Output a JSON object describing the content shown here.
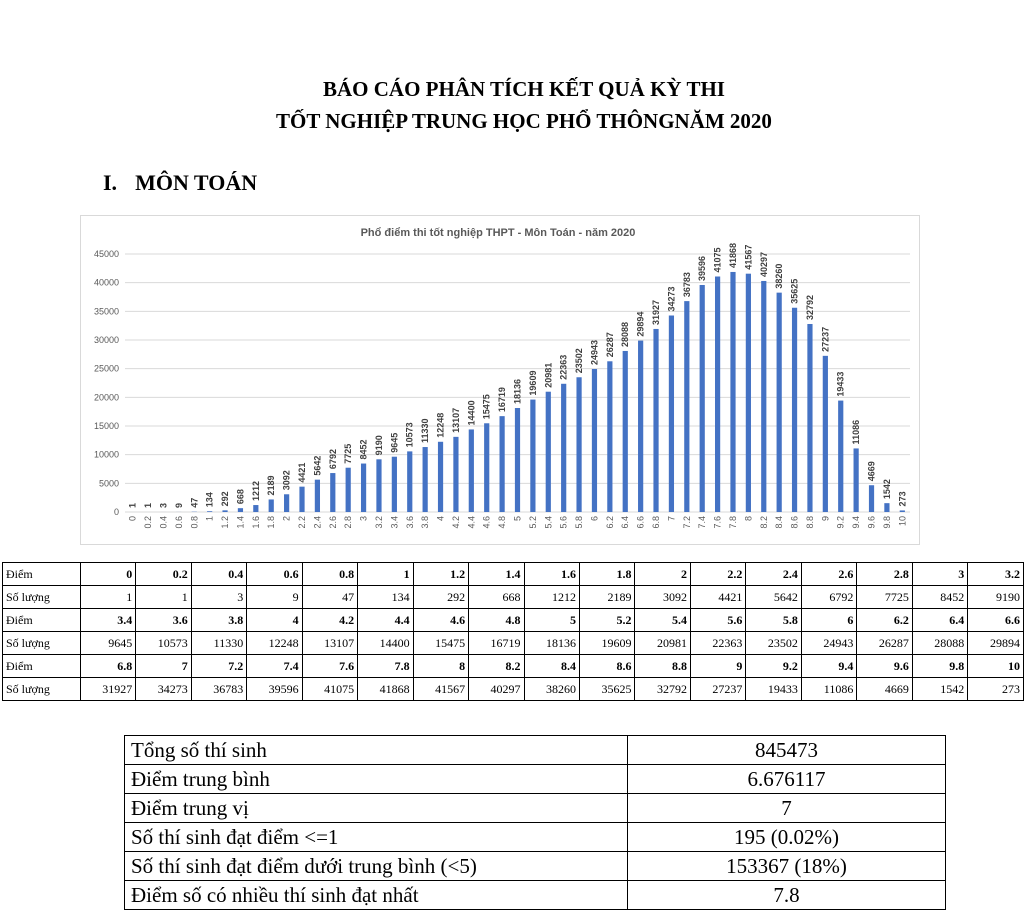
{
  "header": {
    "title_lines": [
      "BÁO CÁO PHÂN TÍCH KẾT QUẢ KỲ THI",
      "TỐT NGHIỆP TRUNG HỌC PHỔ THÔNGNĂM 2020"
    ]
  },
  "section": {
    "number": "I.",
    "title": "MÔN TOÁN"
  },
  "chart_data": {
    "type": "bar",
    "title": "Phổ điểm thi tốt nghiệp THPT - Môn Toán - năm 2020",
    "categories": [
      0,
      0.2,
      0.4,
      0.6,
      0.8,
      1,
      1.2,
      1.4,
      1.6,
      1.8,
      2,
      2.2,
      2.4,
      2.6,
      2.8,
      3,
      3.2,
      3.4,
      3.6,
      3.8,
      4,
      4.2,
      4.4,
      4.6,
      4.8,
      5,
      5.2,
      5.4,
      5.6,
      5.8,
      6,
      6.2,
      6.4,
      6.6,
      6.8,
      7,
      7.2,
      7.4,
      7.6,
      7.8,
      8,
      8.2,
      8.4,
      8.6,
      8.8,
      9,
      9.2,
      9.4,
      9.6,
      9.8,
      10
    ],
    "values": [
      1,
      1,
      3,
      9,
      47,
      134,
      292,
      668,
      1212,
      2189,
      3092,
      4421,
      5642,
      6792,
      7725,
      8452,
      9190,
      9645,
      10573,
      11330,
      12248,
      13107,
      14400,
      15475,
      16719,
      18136,
      19609,
      20981,
      22363,
      23502,
      24943,
      26287,
      28088,
      29894,
      31927,
      34273,
      36783,
      39596,
      41075,
      41868,
      41567,
      40297,
      38260,
      35625,
      32792,
      27237,
      19433,
      11086,
      4669,
      1542,
      273
    ],
    "color": "#4472c4",
    "ylim": [
      0,
      45000
    ],
    "yticks": [
      0,
      5000,
      10000,
      15000,
      20000,
      25000,
      30000,
      35000,
      40000,
      45000
    ],
    "grid": true
  },
  "table": {
    "row_labels": [
      "Điểm",
      "Số lượng"
    ]
  },
  "summary": {
    "rows": [
      [
        "Tổng số thí sinh",
        "845473"
      ],
      [
        "Điểm trung bình",
        "6.676117"
      ],
      [
        "Điểm trung vị",
        "7"
      ],
      [
        "Số thí sinh đạt điểm <=1",
        "195 (0.02%)"
      ],
      [
        "Số thí sinh đạt điểm dưới trung bình (<5)",
        "153367 (18%)"
      ],
      [
        "Điểm số có nhiều thí sinh đạt nhất",
        "7.8"
      ]
    ]
  }
}
